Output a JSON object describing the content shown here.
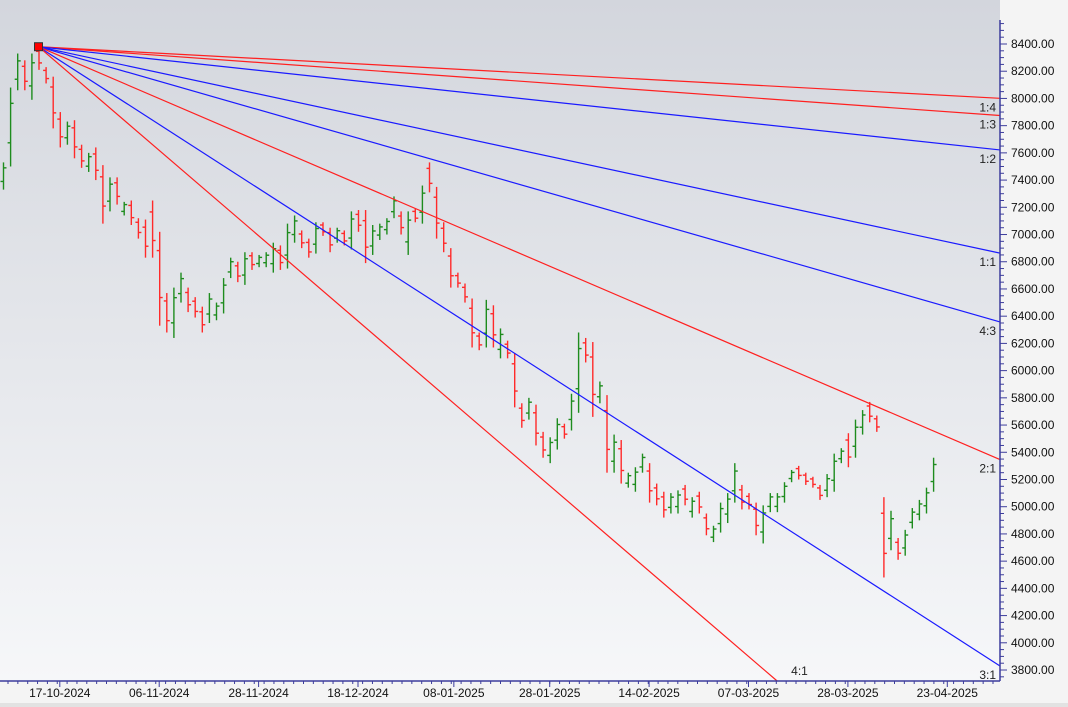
{
  "chart_data": {
    "type": "ohlc-bar",
    "title": "",
    "xlabel": "",
    "ylabel": "",
    "ylim": [
      3750,
      8560
    ],
    "grid": false,
    "y_ticks": [
      "3800.00",
      "4000.00",
      "4200.00",
      "4400.00",
      "4600.00",
      "4800.00",
      "5000.00",
      "5200.00",
      "5400.00",
      "5600.00",
      "5800.00",
      "6000.00",
      "6200.00",
      "6400.00",
      "6600.00",
      "6800.00",
      "7000.00",
      "7200.00",
      "7400.00",
      "7600.00",
      "7800.00",
      "8000.00",
      "8200.00",
      "8400.00"
    ],
    "x_ticks": [
      {
        "label": "17-10-2024",
        "bar": 8
      },
      {
        "label": "06-11-2024",
        "bar": 22
      },
      {
        "label": "28-11-2024",
        "bar": 36
      },
      {
        "label": "18-12-2024",
        "bar": 50
      },
      {
        "label": "08-01-2025",
        "bar": 63.5
      },
      {
        "label": "28-01-2025",
        "bar": 77
      },
      {
        "label": "14-02-2025",
        "bar": 91
      },
      {
        "label": "07-03-2025",
        "bar": 105
      },
      {
        "label": "28-03-2025",
        "bar": 119
      },
      {
        "label": "23-04-2025",
        "bar": 133
      }
    ],
    "colors": {
      "up": "#1e8c1e",
      "down": "#ff2a2a",
      "fan_red": "#ff2020",
      "fan_blue": "#1a1aff",
      "axis": "#3c3c9c"
    },
    "bars_high_low_up": [
      [
        7530,
        7330,
        1
      ],
      [
        8080,
        7500,
        1
      ],
      [
        8330,
        8060,
        1
      ],
      [
        8280,
        8060,
        0
      ],
      [
        8330,
        7990,
        1
      ],
      [
        8380,
        8210,
        0
      ],
      [
        8230,
        8110,
        0
      ],
      [
        8160,
        7780,
        0
      ],
      [
        7900,
        7640,
        0
      ],
      [
        7830,
        7660,
        1
      ],
      [
        7840,
        7560,
        0
      ],
      [
        7660,
        7490,
        0
      ],
      [
        7600,
        7460,
        1
      ],
      [
        7640,
        7400,
        0
      ],
      [
        7510,
        7080,
        0
      ],
      [
        7420,
        7170,
        1
      ],
      [
        7420,
        7220,
        0
      ],
      [
        7240,
        7140,
        1
      ],
      [
        7250,
        7070,
        0
      ],
      [
        7120,
        6970,
        0
      ],
      [
        7110,
        6830,
        0
      ],
      [
        7250,
        6830,
        0
      ],
      [
        7020,
        6330,
        0
      ],
      [
        6570,
        6280,
        0
      ],
      [
        6610,
        6240,
        1
      ],
      [
        6720,
        6500,
        1
      ],
      [
        6610,
        6430,
        0
      ],
      [
        6540,
        6390,
        0
      ],
      [
        6470,
        6280,
        0
      ],
      [
        6570,
        6350,
        1
      ],
      [
        6500,
        6370,
        1
      ],
      [
        6680,
        6420,
        1
      ],
      [
        6830,
        6680,
        1
      ],
      [
        6800,
        6650,
        0
      ],
      [
        6870,
        6630,
        1
      ],
      [
        6870,
        6740,
        0
      ],
      [
        6850,
        6760,
        1
      ],
      [
        6870,
        6760,
        1
      ],
      [
        6940,
        6720,
        1
      ],
      [
        6920,
        6740,
        0
      ],
      [
        7080,
        6750,
        1
      ],
      [
        7140,
        6940,
        1
      ],
      [
        7030,
        6900,
        0
      ],
      [
        6970,
        6830,
        0
      ],
      [
        7090,
        6860,
        1
      ],
      [
        7090,
        6990,
        0
      ],
      [
        7050,
        6870,
        0
      ],
      [
        7050,
        6940,
        1
      ],
      [
        7030,
        6920,
        0
      ],
      [
        7170,
        6890,
        1
      ],
      [
        7180,
        7020,
        0
      ],
      [
        7180,
        6790,
        0
      ],
      [
        7070,
        6850,
        1
      ],
      [
        7080,
        6960,
        1
      ],
      [
        7120,
        7000,
        1
      ],
      [
        7280,
        7120,
        1
      ],
      [
        7170,
        7000,
        0
      ],
      [
        7170,
        6850,
        1
      ],
      [
        7190,
        7090,
        0
      ],
      [
        7360,
        7080,
        1
      ],
      [
        7530,
        7310,
        0
      ],
      [
        7350,
        6970,
        0
      ],
      [
        7090,
        6870,
        0
      ],
      [
        6900,
        6610,
        0
      ],
      [
        6720,
        6610,
        0
      ],
      [
        6640,
        6500,
        0
      ],
      [
        6530,
        6170,
        0
      ],
      [
        6280,
        6150,
        0
      ],
      [
        6520,
        6170,
        1
      ],
      [
        6480,
        6170,
        0
      ],
      [
        6310,
        6090,
        1
      ],
      [
        6220,
        6090,
        0
      ],
      [
        6130,
        5730,
        0
      ],
      [
        5760,
        5580,
        0
      ],
      [
        5800,
        5640,
        1
      ],
      [
        5750,
        5450,
        0
      ],
      [
        5550,
        5360,
        0
      ],
      [
        5510,
        5320,
        1
      ],
      [
        5650,
        5420,
        1
      ],
      [
        5610,
        5500,
        0
      ],
      [
        5830,
        5560,
        1
      ],
      [
        6280,
        5690,
        1
      ],
      [
        6240,
        6060,
        0
      ],
      [
        6210,
        5660,
        0
      ],
      [
        5920,
        5760,
        1
      ],
      [
        5820,
        5250,
        0
      ],
      [
        5530,
        5250,
        1
      ],
      [
        5490,
        5170,
        0
      ],
      [
        5250,
        5140,
        1
      ],
      [
        5290,
        5110,
        1
      ],
      [
        5390,
        5250,
        1
      ],
      [
        5320,
        5030,
        0
      ],
      [
        5170,
        5010,
        0
      ],
      [
        5110,
        4920,
        0
      ],
      [
        5100,
        4950,
        1
      ],
      [
        5120,
        4950,
        1
      ],
      [
        5160,
        5010,
        0
      ],
      [
        5070,
        4920,
        1
      ],
      [
        5110,
        4950,
        0
      ],
      [
        4950,
        4790,
        0
      ],
      [
        4860,
        4740,
        1
      ],
      [
        5030,
        4810,
        1
      ],
      [
        5100,
        4880,
        1
      ],
      [
        5320,
        5030,
        1
      ],
      [
        5160,
        4980,
        0
      ],
      [
        5100,
        4980,
        0
      ],
      [
        5030,
        4790,
        0
      ],
      [
        5010,
        4730,
        1
      ],
      [
        5100,
        4960,
        1
      ],
      [
        5100,
        4960,
        1
      ],
      [
        5180,
        5030,
        1
      ],
      [
        5270,
        5180,
        1
      ],
      [
        5300,
        5200,
        0
      ],
      [
        5250,
        5160,
        0
      ],
      [
        5220,
        5140,
        0
      ],
      [
        5160,
        5050,
        0
      ],
      [
        5240,
        5070,
        1
      ],
      [
        5390,
        5110,
        1
      ],
      [
        5430,
        5320,
        1
      ],
      [
        5540,
        5290,
        0
      ],
      [
        5640,
        5360,
        1
      ],
      [
        5710,
        5530,
        1
      ],
      [
        5770,
        5620,
        0
      ],
      [
        5670,
        5550,
        0
      ],
      [
        5070,
        4480,
        0
      ],
      [
        4970,
        4680,
        1
      ],
      [
        4770,
        4610,
        0
      ],
      [
        4830,
        4640,
        1
      ],
      [
        4990,
        4840,
        1
      ],
      [
        5050,
        4900,
        1
      ],
      [
        5140,
        4950,
        1
      ],
      [
        5360,
        5110,
        1
      ]
    ],
    "gann_fan": {
      "origin_bar": 5,
      "origin_price": 8380,
      "price_per_bar_1x1": 11.2,
      "lines": [
        {
          "label": "1:4",
          "ratio": 0.25,
          "color": "red"
        },
        {
          "label": "1:3",
          "ratio": 0.3333,
          "color": "red"
        },
        {
          "label": "1:2",
          "ratio": 0.5,
          "color": "blue"
        },
        {
          "label": "1:1",
          "ratio": 1,
          "color": "blue"
        },
        {
          "label": "4:3",
          "ratio": 1.3333,
          "color": "blue"
        },
        {
          "label": "2:1",
          "ratio": 2,
          "color": "red"
        },
        {
          "label": "3:1",
          "ratio": 3,
          "color": "blue"
        },
        {
          "label": "4:1",
          "ratio": 4,
          "color": "red"
        }
      ]
    }
  }
}
